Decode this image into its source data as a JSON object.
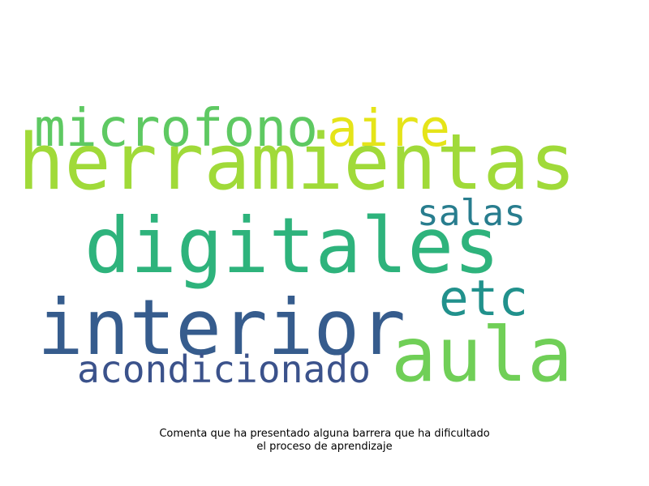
{
  "words": [
    {
      "text": "herramientas",
      "color": "#a0da39"
    },
    {
      "text": "digitales",
      "color": "#2eb37c"
    },
    {
      "text": "interior",
      "color": "#365c8d"
    },
    {
      "text": "aula",
      "color": "#70cf57"
    },
    {
      "text": "microfono",
      "color": "#5ec962"
    },
    {
      "text": "aire",
      "color": "#e5e419"
    },
    {
      "text": "salas",
      "color": "#287d8e"
    },
    {
      "text": "etc",
      "color": "#21918c"
    },
    {
      "text": "acondicionado",
      "color": "#3b528b"
    }
  ],
  "caption": {
    "line1": "Comenta que ha presentado alguna barrera que ha dificultado",
    "line2": "el proceso de aprendizaje"
  }
}
